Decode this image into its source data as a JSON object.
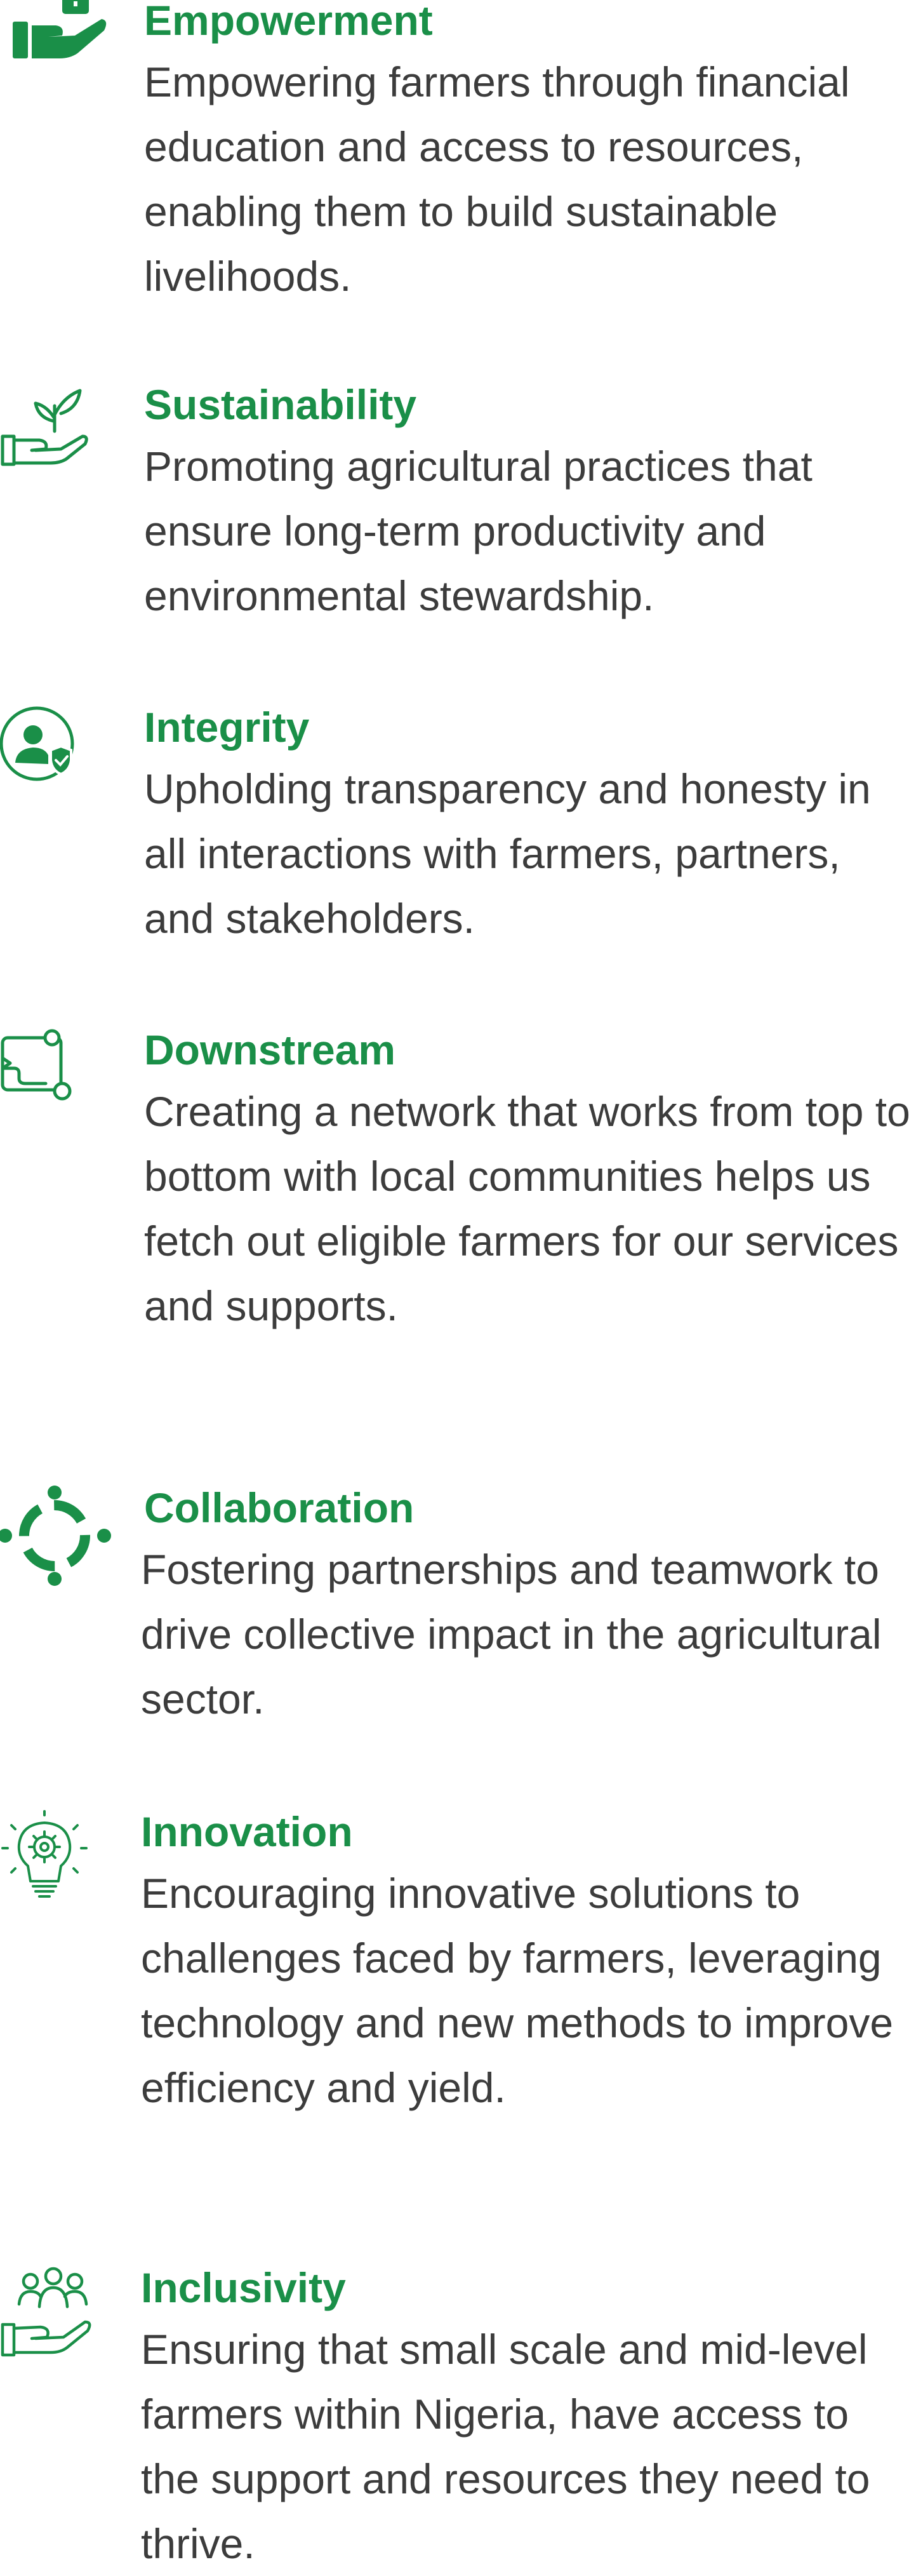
{
  "accent_color": "#1a8f48",
  "values": [
    {
      "icon": "hand-holding-briefcase-icon",
      "title": "Empowerment",
      "description": "Empowering farmers through financial education and access to resources, enabling them to build sustainable livelihoods."
    },
    {
      "icon": "hand-with-plant-icon",
      "title": "Sustainability",
      "description": "Promoting agricultural practices that ensure long-term productivity and environmental stewardship."
    },
    {
      "icon": "user-shield-icon",
      "title": "Integrity",
      "description": "Upholding transparency and honesty in all interactions with farmers, partners, and stakeholders."
    },
    {
      "icon": "network-flow-icon",
      "title": "Downstream",
      "description": "Creating a network that works from top to bottom with local communities helps us fetch out eligible farmers for our services and supports."
    },
    {
      "icon": "collaboration-circle-icon",
      "title": " Collaboration",
      "description": "Fostering partnerships and teamwork to drive collective impact in the agricultural sector."
    },
    {
      "icon": "lightbulb-gear-icon",
      "title": "Innovation",
      "description": "Encouraging innovative solutions to challenges faced by farmers, leveraging technology and new methods to improve efficiency and yield."
    },
    {
      "icon": "hand-holding-people-icon",
      "title": "Inclusivity",
      "description": "Ensuring that small scale and mid-level farmers within Nigeria, have access to the support and resources they need to thrive."
    }
  ]
}
